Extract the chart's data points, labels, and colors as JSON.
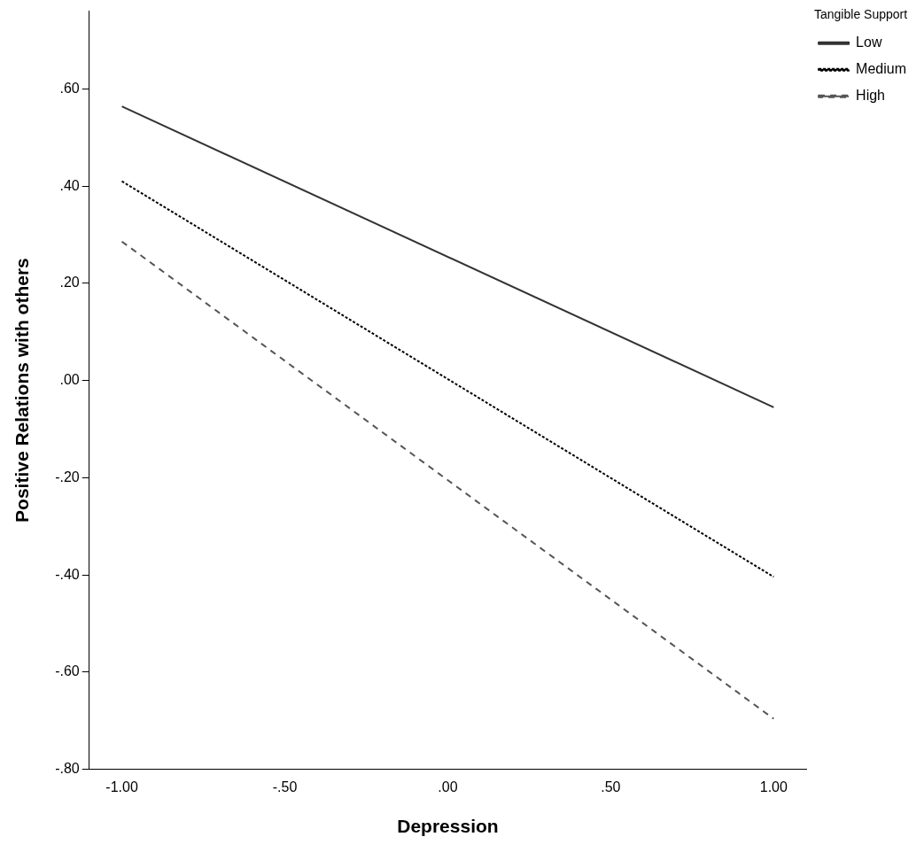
{
  "chart_data": {
    "type": "line",
    "xlabel": "Depression",
    "ylabel": "Positive Relations with others",
    "legend_title": "Tangible Support",
    "legend": "top right",
    "grid": false,
    "marker": "none",
    "xlim": [
      -1.1,
      1.1
    ],
    "xticks": [
      {
        "value": -1,
        "label": "-1.00"
      },
      {
        "value": -0.5,
        "label": "-.50"
      },
      {
        "value": 0,
        "label": ".00"
      },
      {
        "value": 0.5,
        "label": ".50"
      },
      {
        "value": 1,
        "label": "1.00"
      }
    ],
    "ylim": [
      -0.8,
      0.76
    ],
    "yticks": [
      {
        "value": -0.8,
        "label": "-.80"
      },
      {
        "value": -0.6,
        "label": "-.60"
      },
      {
        "value": -0.4,
        "label": "-.40"
      },
      {
        "value": -0.2,
        "label": "-.20"
      },
      {
        "value": 0,
        "label": ".00"
      },
      {
        "value": 0.2,
        "label": ".20"
      },
      {
        "value": 0.4,
        "label": ".40"
      },
      {
        "value": 0.6,
        "label": ".60"
      }
    ],
    "x": [
      -1,
      1
    ],
    "series": [
      {
        "name": "Low",
        "color": "#333333",
        "values": [
          0.564,
          -0.055
        ],
        "line_style": "solid"
      },
      {
        "name": "Medium",
        "color": "#000000",
        "values": [
          0.41,
          -0.404
        ],
        "line_style": "dotted"
      },
      {
        "name": "High",
        "color": "#555555",
        "values": [
          0.286,
          -0.696
        ],
        "line_style": "dashed"
      }
    ]
  }
}
